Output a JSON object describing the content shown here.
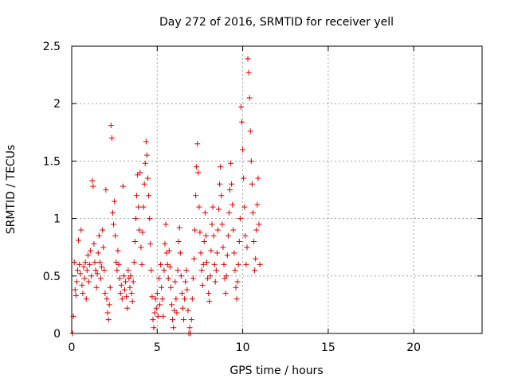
{
  "chart_data": {
    "type": "scatter",
    "title": "Day 272 of 2016, SRMTID for receiver yell",
    "xlabel": "GPS time / hours",
    "ylabel": "SRMTID / TECUs",
    "xlim": [
      0,
      24
    ],
    "ylim": [
      0,
      2.5
    ],
    "xticks": [
      0,
      5,
      10,
      15,
      20
    ],
    "xtick_labels": [
      "0",
      "5",
      "10",
      "15",
      "20"
    ],
    "yticks": [
      0,
      0.5,
      1,
      1.5,
      2,
      2.5
    ],
    "ytick_labels": [
      "0",
      "0.5",
      "1",
      "1.5",
      "2",
      "2.5"
    ],
    "grid": true,
    "marker": "+",
    "color": "#e00000",
    "series": [
      {
        "name": "SRMTID",
        "points": [
          [
            0.05,
            0.0
          ],
          [
            0.1,
            0.15
          ],
          [
            0.15,
            0.62
          ],
          [
            0.2,
            0.38
          ],
          [
            0.25,
            0.33
          ],
          [
            0.3,
            0.45
          ],
          [
            0.35,
            0.55
          ],
          [
            0.4,
            0.81
          ],
          [
            0.45,
            0.6
          ],
          [
            0.5,
            0.52
          ],
          [
            0.55,
            0.9
          ],
          [
            0.6,
            0.42
          ],
          [
            0.65,
            0.35
          ],
          [
            0.7,
            0.58
          ],
          [
            0.75,
            0.48
          ],
          [
            0.8,
            0.62
          ],
          [
            0.85,
            0.3
          ],
          [
            0.9,
            0.55
          ],
          [
            0.95,
            0.68
          ],
          [
            1.0,
            0.45
          ],
          [
            1.05,
            0.6
          ],
          [
            1.1,
            0.72
          ],
          [
            1.15,
            0.5
          ],
          [
            1.2,
            1.33
          ],
          [
            1.25,
            1.28
          ],
          [
            1.3,
            0.78
          ],
          [
            1.35,
            0.62
          ],
          [
            1.4,
            0.55
          ],
          [
            1.45,
            0.4
          ],
          [
            1.5,
            0.52
          ],
          [
            1.55,
            0.7
          ],
          [
            1.6,
            0.85
          ],
          [
            1.65,
            0.62
          ],
          [
            1.7,
            0.48
          ],
          [
            1.75,
            0.58
          ],
          [
            1.8,
            0.9
          ],
          [
            1.85,
            0.75
          ],
          [
            1.9,
            0.55
          ],
          [
            1.95,
            0.35
          ],
          [
            2.0,
            1.25
          ],
          [
            2.05,
            0.3
          ],
          [
            2.1,
            0.18
          ],
          [
            2.15,
            0.12
          ],
          [
            2.2,
            0.25
          ],
          [
            2.25,
            0.4
          ],
          [
            2.3,
            1.81
          ],
          [
            2.35,
            1.7
          ],
          [
            2.4,
            1.05
          ],
          [
            2.45,
            0.95
          ],
          [
            2.5,
            1.15
          ],
          [
            2.55,
            0.85
          ],
          [
            2.6,
            0.62
          ],
          [
            2.65,
            0.55
          ],
          [
            2.7,
            0.72
          ],
          [
            2.75,
            0.6
          ],
          [
            2.8,
            0.48
          ],
          [
            2.85,
            0.35
          ],
          [
            2.9,
            0.42
          ],
          [
            2.95,
            0.3
          ],
          [
            3.0,
            1.28
          ],
          [
            3.05,
            0.5
          ],
          [
            3.1,
            0.38
          ],
          [
            3.15,
            0.45
          ],
          [
            3.2,
            0.32
          ],
          [
            3.25,
            0.22
          ],
          [
            3.3,
            0.55
          ],
          [
            3.35,
            0.48
          ],
          [
            3.4,
            0.4
          ],
          [
            3.45,
            0.5
          ],
          [
            3.5,
            0.35
          ],
          [
            3.55,
            0.28
          ],
          [
            3.6,
            0.45
          ],
          [
            3.65,
            0.62
          ],
          [
            3.7,
            0.8
          ],
          [
            3.75,
            1.0
          ],
          [
            3.8,
            1.2
          ],
          [
            3.85,
            1.38
          ],
          [
            3.9,
            1.1
          ],
          [
            3.95,
            0.9
          ],
          [
            4.0,
            1.4
          ],
          [
            4.05,
            0.75
          ],
          [
            4.1,
            0.6
          ],
          [
            4.15,
            0.88
          ],
          [
            4.2,
            1.1
          ],
          [
            4.25,
            1.3
          ],
          [
            4.3,
            1.48
          ],
          [
            4.35,
            1.67
          ],
          [
            4.4,
            1.55
          ],
          [
            4.45,
            1.35
          ],
          [
            4.5,
            1.2
          ],
          [
            4.55,
            1.0
          ],
          [
            4.6,
            0.78
          ],
          [
            4.65,
            0.55
          ],
          [
            4.7,
            0.32
          ],
          [
            4.75,
            0.12
          ],
          [
            4.8,
            0.05
          ],
          [
            4.85,
            0.18
          ],
          [
            4.9,
            0.3
          ],
          [
            4.95,
            0.22
          ],
          [
            5.0,
            0.35
          ],
          [
            5.05,
            0.15
          ],
          [
            5.1,
            0.48
          ],
          [
            5.15,
            0.25
          ],
          [
            5.2,
            0.6
          ],
          [
            5.25,
            0.4
          ],
          [
            5.3,
            0.3
          ],
          [
            5.35,
            0.15
          ],
          [
            5.4,
            0.55
          ],
          [
            5.45,
            0.78
          ],
          [
            5.5,
            0.95
          ],
          [
            5.55,
            0.7
          ],
          [
            5.6,
            0.6
          ],
          [
            5.65,
            0.48
          ],
          [
            5.7,
            0.72
          ],
          [
            5.75,
            0.58
          ],
          [
            5.8,
            0.4
          ],
          [
            5.85,
            0.25
          ],
          [
            5.9,
            0.12
          ],
          [
            5.95,
            0.05
          ],
          [
            6.0,
            0.2
          ],
          [
            6.05,
            0.45
          ],
          [
            6.1,
            0.3
          ],
          [
            6.15,
            0.18
          ],
          [
            6.2,
            0.55
          ],
          [
            6.25,
            0.8
          ],
          [
            6.3,
            0.92
          ],
          [
            6.35,
            0.7
          ],
          [
            6.4,
            0.5
          ],
          [
            6.45,
            0.35
          ],
          [
            6.5,
            0.22
          ],
          [
            6.55,
            0.12
          ],
          [
            6.6,
            0.3
          ],
          [
            6.65,
            0.45
          ],
          [
            6.7,
            0.55
          ],
          [
            6.75,
            0.38
          ],
          [
            6.8,
            0.2
          ],
          [
            6.85,
            0.0
          ],
          [
            6.9,
            0.05
          ],
          [
            6.95,
            0.0
          ],
          [
            7.0,
            0.12
          ],
          [
            7.05,
            0.3
          ],
          [
            7.1,
            0.48
          ],
          [
            7.15,
            0.65
          ],
          [
            7.2,
            0.9
          ],
          [
            7.25,
            1.2
          ],
          [
            7.3,
            1.45
          ],
          [
            7.35,
            1.65
          ],
          [
            7.4,
            1.4
          ],
          [
            7.45,
            1.1
          ],
          [
            7.5,
            0.88
          ],
          [
            7.55,
            0.7
          ],
          [
            7.6,
            0.55
          ],
          [
            7.65,
            0.42
          ],
          [
            7.7,
            0.6
          ],
          [
            7.75,
            0.8
          ],
          [
            7.8,
            1.05
          ],
          [
            7.85,
            0.85
          ],
          [
            7.9,
            0.62
          ],
          [
            7.95,
            0.48
          ],
          [
            8.0,
            0.35
          ],
          [
            8.05,
            0.28
          ],
          [
            8.1,
            0.5
          ],
          [
            8.15,
            0.72
          ],
          [
            8.2,
            0.95
          ],
          [
            8.25,
            1.1
          ],
          [
            8.3,
            0.85
          ],
          [
            8.35,
            0.6
          ],
          [
            8.4,
            0.45
          ],
          [
            8.45,
            0.55
          ],
          [
            8.5,
            0.7
          ],
          [
            8.55,
            0.9
          ],
          [
            8.6,
            1.08
          ],
          [
            8.65,
            1.3
          ],
          [
            8.7,
            1.45
          ],
          [
            8.75,
            1.2
          ],
          [
            8.8,
            0.95
          ],
          [
            8.85,
            0.75
          ],
          [
            8.9,
            0.6
          ],
          [
            8.95,
            0.48
          ],
          [
            9.0,
            0.35
          ],
          [
            9.05,
            0.5
          ],
          [
            9.1,
            0.68
          ],
          [
            9.15,
            0.85
          ],
          [
            9.2,
            1.05
          ],
          [
            9.25,
            1.25
          ],
          [
            9.3,
            1.48
          ],
          [
            9.35,
            1.3
          ],
          [
            9.4,
            1.12
          ],
          [
            9.45,
            0.9
          ],
          [
            9.5,
            0.7
          ],
          [
            9.55,
            0.55
          ],
          [
            9.6,
            0.4
          ],
          [
            9.65,
            0.3
          ],
          [
            9.7,
            0.45
          ],
          [
            9.75,
            0.6
          ],
          [
            9.8,
            0.8
          ],
          [
            9.85,
            1.0
          ],
          [
            9.9,
            1.97
          ],
          [
            9.95,
            1.84
          ],
          [
            10.0,
            1.6
          ],
          [
            10.05,
            1.35
          ],
          [
            10.1,
            1.1
          ],
          [
            10.15,
            0.85
          ],
          [
            10.2,
            0.6
          ],
          [
            10.25,
            0.75
          ],
          [
            10.3,
            2.39
          ],
          [
            10.35,
            2.27
          ],
          [
            10.4,
            2.05
          ],
          [
            10.45,
            1.76
          ],
          [
            10.5,
            1.5
          ],
          [
            10.55,
            1.3
          ],
          [
            10.6,
            1.05
          ],
          [
            10.65,
            0.8
          ],
          [
            10.7,
            0.55
          ],
          [
            10.75,
            0.65
          ],
          [
            10.8,
            0.9
          ],
          [
            10.85,
            1.12
          ],
          [
            10.9,
            1.35
          ],
          [
            10.95,
            0.95
          ],
          [
            11.0,
            0.6
          ]
        ]
      }
    ]
  }
}
